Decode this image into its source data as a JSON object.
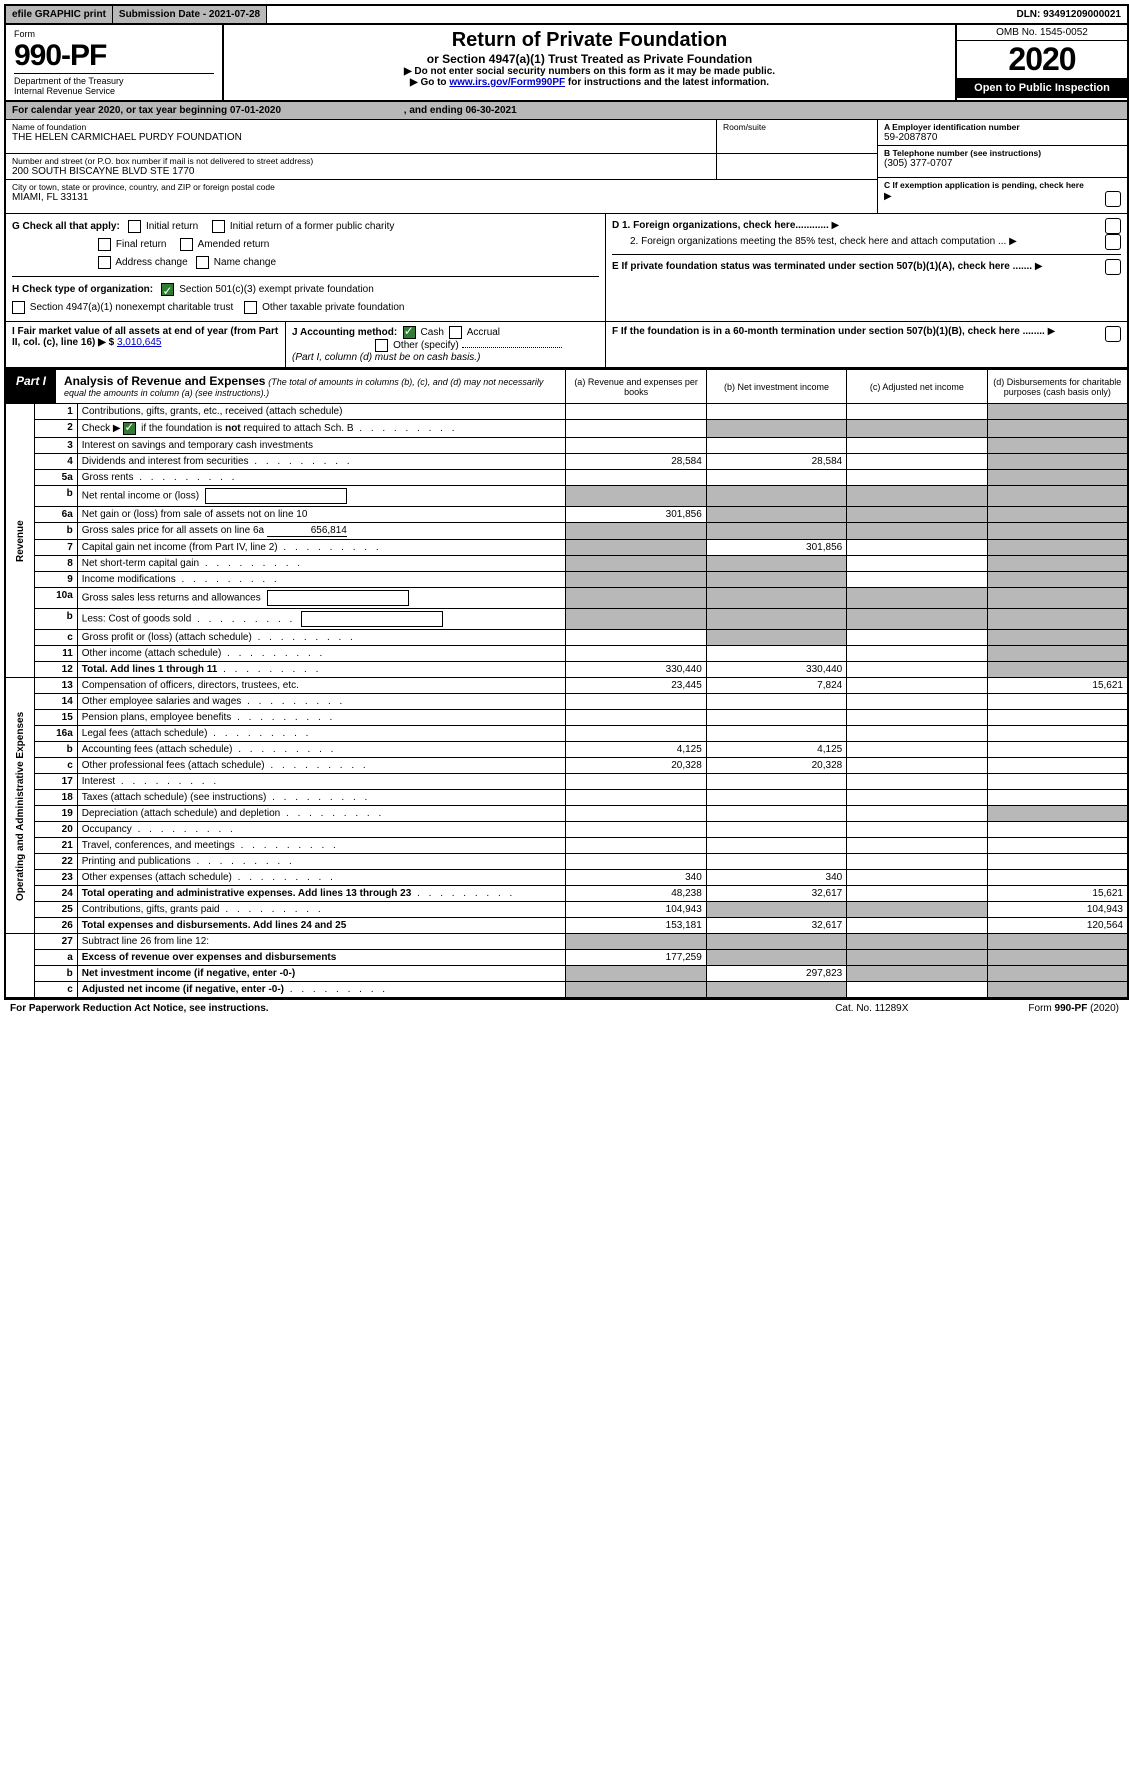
{
  "top": {
    "efile": "efile GRAPHIC print",
    "submission": "Submission Date - 2021-07-28",
    "dln": "DLN: 93491209000021"
  },
  "header": {
    "form": "Form",
    "form_no": "990-PF",
    "dept": "Department of the Treasury\nInternal Revenue Service",
    "title": "Return of Private Foundation",
    "subtitle": "or Section 4947(a)(1) Trust Treated as Private Foundation",
    "note1": "▶ Do not enter social security numbers on this form as it may be made public.",
    "note2_pre": "▶ Go to ",
    "note2_link": "www.irs.gov/Form990PF",
    "note2_post": " for instructions and the latest information.",
    "omb": "OMB No. 1545-0052",
    "year": "2020",
    "open": "Open to Public Inspection"
  },
  "cal": {
    "text_pre": "For calendar year 2020, or tax year beginning ",
    "begin": "07-01-2020",
    "mid": " , and ending ",
    "end": "06-30-2021"
  },
  "id": {
    "name_lbl": "Name of foundation",
    "name": "THE HELEN CARMICHAEL PURDY FOUNDATION",
    "addr_lbl": "Number and street (or P.O. box number if mail is not delivered to street address)",
    "addr": "200 SOUTH BISCAYNE BLVD STE 1770",
    "room_lbl": "Room/suite",
    "city_lbl": "City or town, state or province, country, and ZIP or foreign postal code",
    "city": "MIAMI, FL  33131",
    "a_lbl": "A Employer identification number",
    "a_val": "59-2087870",
    "b_lbl": "B Telephone number (see instructions)",
    "b_val": "(305) 377-0707",
    "c_lbl": "C If exemption application is pending, check here"
  },
  "g": {
    "label": "G Check all that apply:",
    "initial": "Initial return",
    "initial_former": "Initial return of a former public charity",
    "final": "Final return",
    "amended": "Amended return",
    "addr_change": "Address change",
    "name_change": "Name change"
  },
  "d": {
    "d1": "D 1. Foreign organizations, check here............",
    "d2": "2. Foreign organizations meeting the 85% test, check here and attach computation ...",
    "e": "E  If private foundation status was terminated under section 507(b)(1)(A), check here .......",
    "f": "F  If the foundation is in a 60-month termination under section 507(b)(1)(B), check here ........"
  },
  "h": {
    "label": "H Check type of organization:",
    "s501": "Section 501(c)(3) exempt private foundation",
    "s4947": "Section 4947(a)(1) nonexempt charitable trust",
    "other_tax": "Other taxable private foundation"
  },
  "i": {
    "label": "I Fair market value of all assets at end of year (from Part II, col. (c), line 16) ▶ $",
    "val": "3,010,645"
  },
  "j": {
    "label": "J Accounting method:",
    "cash": "Cash",
    "accrual": "Accrual",
    "other": "Other (specify)",
    "note": "(Part I, column (d) must be on cash basis.)"
  },
  "part1": {
    "label": "Part I",
    "title": "Analysis of Revenue and Expenses",
    "note": "(The total of amounts in columns (b), (c), and (d) may not necessarily equal the amounts in column (a) (see instructions).)",
    "col_a": "(a) Revenue and expenses per books",
    "col_b": "(b) Net investment income",
    "col_c": "(c) Adjusted net income",
    "col_d": "(d) Disbursements for charitable purposes (cash basis only)"
  },
  "sections": {
    "revenue": "Revenue",
    "expenses": "Operating and Administrative Expenses"
  },
  "rows": [
    {
      "n": "1",
      "d": "Contributions, gifts, grants, etc., received (attach schedule)",
      "a": "",
      "b": "",
      "c": "",
      "dd": "",
      "sec": "rev"
    },
    {
      "n": "2",
      "d": "Check ▶ ☑ if the foundation is not required to attach Sch. B",
      "a": "",
      "b": "",
      "c": "",
      "dd": "",
      "sec": "rev",
      "dots": true,
      "grey_bcd": true
    },
    {
      "n": "3",
      "d": "Interest on savings and temporary cash investments",
      "a": "",
      "b": "",
      "c": "",
      "dd": "",
      "sec": "rev"
    },
    {
      "n": "4",
      "d": "Dividends and interest from securities",
      "a": "28,584",
      "b": "28,584",
      "c": "",
      "dd": "",
      "sec": "rev",
      "dots": true
    },
    {
      "n": "5a",
      "d": "Gross rents",
      "a": "",
      "b": "",
      "c": "",
      "dd": "",
      "sec": "rev",
      "dots": true
    },
    {
      "n": "b",
      "d": "Net rental income or (loss)",
      "a": "",
      "b": "",
      "c": "",
      "dd": "",
      "sec": "rev",
      "box": true,
      "grey_abcd": true
    },
    {
      "n": "6a",
      "d": "Net gain or (loss) from sale of assets not on line 10",
      "a": "301,856",
      "b": "",
      "c": "",
      "dd": "",
      "sec": "rev",
      "grey_bcd": true
    },
    {
      "n": "b",
      "d": "Gross sales price for all assets on line 6a",
      "a": "",
      "b": "",
      "c": "",
      "dd": "",
      "sec": "rev",
      "inline": "656,814",
      "grey_abcd": true
    },
    {
      "n": "7",
      "d": "Capital gain net income (from Part IV, line 2)",
      "a": "",
      "b": "301,856",
      "c": "",
      "dd": "",
      "sec": "rev",
      "dots": true,
      "grey_a": true
    },
    {
      "n": "8",
      "d": "Net short-term capital gain",
      "a": "",
      "b": "",
      "c": "",
      "dd": "",
      "sec": "rev",
      "dots": true,
      "grey_ab": true
    },
    {
      "n": "9",
      "d": "Income modifications",
      "a": "",
      "b": "",
      "c": "",
      "dd": "",
      "sec": "rev",
      "dots": true,
      "grey_ab": true
    },
    {
      "n": "10a",
      "d": "Gross sales less returns and allowances",
      "a": "",
      "b": "",
      "c": "",
      "dd": "",
      "sec": "rev",
      "box": true,
      "grey_abcd": true
    },
    {
      "n": "b",
      "d": "Less: Cost of goods sold",
      "a": "",
      "b": "",
      "c": "",
      "dd": "",
      "sec": "rev",
      "dots": true,
      "box": true,
      "grey_abcd": true
    },
    {
      "n": "c",
      "d": "Gross profit or (loss) (attach schedule)",
      "a": "",
      "b": "",
      "c": "",
      "dd": "",
      "sec": "rev",
      "dots": true,
      "grey_b": true
    },
    {
      "n": "11",
      "d": "Other income (attach schedule)",
      "a": "",
      "b": "",
      "c": "",
      "dd": "",
      "sec": "rev",
      "dots": true
    },
    {
      "n": "12",
      "d": "Total. Add lines 1 through 11",
      "a": "330,440",
      "b": "330,440",
      "c": "",
      "dd": "",
      "sec": "rev",
      "dots": true,
      "bold": true,
      "grey_d": true
    },
    {
      "n": "13",
      "d": "Compensation of officers, directors, trustees, etc.",
      "a": "23,445",
      "b": "7,824",
      "c": "",
      "dd": "15,621",
      "sec": "exp"
    },
    {
      "n": "14",
      "d": "Other employee salaries and wages",
      "a": "",
      "b": "",
      "c": "",
      "dd": "",
      "sec": "exp",
      "dots": true
    },
    {
      "n": "15",
      "d": "Pension plans, employee benefits",
      "a": "",
      "b": "",
      "c": "",
      "dd": "",
      "sec": "exp",
      "dots": true
    },
    {
      "n": "16a",
      "d": "Legal fees (attach schedule)",
      "a": "",
      "b": "",
      "c": "",
      "dd": "",
      "sec": "exp",
      "dots": true
    },
    {
      "n": "b",
      "d": "Accounting fees (attach schedule)",
      "a": "4,125",
      "b": "4,125",
      "c": "",
      "dd": "",
      "sec": "exp",
      "dots": true
    },
    {
      "n": "c",
      "d": "Other professional fees (attach schedule)",
      "a": "20,328",
      "b": "20,328",
      "c": "",
      "dd": "",
      "sec": "exp",
      "dots": true
    },
    {
      "n": "17",
      "d": "Interest",
      "a": "",
      "b": "",
      "c": "",
      "dd": "",
      "sec": "exp",
      "dots": true
    },
    {
      "n": "18",
      "d": "Taxes (attach schedule) (see instructions)",
      "a": "",
      "b": "",
      "c": "",
      "dd": "",
      "sec": "exp",
      "dots": true
    },
    {
      "n": "19",
      "d": "Depreciation (attach schedule) and depletion",
      "a": "",
      "b": "",
      "c": "",
      "dd": "",
      "sec": "exp",
      "dots": true,
      "grey_d": true
    },
    {
      "n": "20",
      "d": "Occupancy",
      "a": "",
      "b": "",
      "c": "",
      "dd": "",
      "sec": "exp",
      "dots": true
    },
    {
      "n": "21",
      "d": "Travel, conferences, and meetings",
      "a": "",
      "b": "",
      "c": "",
      "dd": "",
      "sec": "exp",
      "dots": true
    },
    {
      "n": "22",
      "d": "Printing and publications",
      "a": "",
      "b": "",
      "c": "",
      "dd": "",
      "sec": "exp",
      "dots": true
    },
    {
      "n": "23",
      "d": "Other expenses (attach schedule)",
      "a": "340",
      "b": "340",
      "c": "",
      "dd": "",
      "sec": "exp",
      "dots": true
    },
    {
      "n": "24",
      "d": "Total operating and administrative expenses. Add lines 13 through 23",
      "a": "48,238",
      "b": "32,617",
      "c": "",
      "dd": "15,621",
      "sec": "exp",
      "dots": true,
      "bold": true
    },
    {
      "n": "25",
      "d": "Contributions, gifts, grants paid",
      "a": "104,943",
      "b": "",
      "c": "",
      "dd": "104,943",
      "sec": "exp",
      "dots": true,
      "grey_bc": true
    },
    {
      "n": "26",
      "d": "Total expenses and disbursements. Add lines 24 and 25",
      "a": "153,181",
      "b": "32,617",
      "c": "",
      "dd": "120,564",
      "sec": "exp",
      "bold": true
    },
    {
      "n": "27",
      "d": "Subtract line 26 from line 12:",
      "a": "",
      "b": "",
      "c": "",
      "dd": "",
      "sec": "none",
      "grey_abcd": true
    },
    {
      "n": "a",
      "d": "Excess of revenue over expenses and disbursements",
      "a": "177,259",
      "b": "",
      "c": "",
      "dd": "",
      "sec": "none",
      "bold": true,
      "grey_bcd": true
    },
    {
      "n": "b",
      "d": "Net investment income (if negative, enter -0-)",
      "a": "",
      "b": "297,823",
      "c": "",
      "dd": "",
      "sec": "none",
      "bold": true,
      "grey_acd": true
    },
    {
      "n": "c",
      "d": "Adjusted net income (if negative, enter -0-)",
      "a": "",
      "b": "",
      "c": "",
      "dd": "",
      "sec": "none",
      "bold": true,
      "dots": true,
      "grey_abd": true
    }
  ],
  "special": {
    "row2_check": "if the foundation is",
    "row2_not": "not",
    "row2_req": "required to attach Sch. B"
  },
  "footer": {
    "left": "For Paperwork Reduction Act Notice, see instructions.",
    "mid": "Cat. No. 11289X",
    "right": "Form 990-PF (2020)"
  }
}
